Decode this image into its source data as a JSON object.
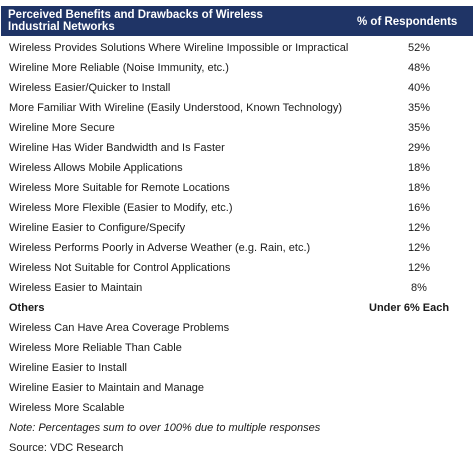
{
  "header": {
    "title": "Perceived Benefits and Drawbacks of Wireless Industrial Networks",
    "column": "% of Respondents"
  },
  "rows": [
    {
      "label": "Wireless Provides Solutions Where Wireline Impossible or Impractical",
      "value": "52%"
    },
    {
      "label": "Wireline More Reliable (Noise Immunity, etc.)",
      "value": "48%"
    },
    {
      "label": "Wireless Easier/Quicker to Install",
      "value": "40%"
    },
    {
      "label": "More Familiar With Wireline (Easily Understood, Known Technology)",
      "value": "35%"
    },
    {
      "label": "Wireline More Secure",
      "value": "35%"
    },
    {
      "label": "Wireline Has Wider Bandwidth and Is Faster",
      "value": "29%"
    },
    {
      "label": "Wireless Allows Mobile Applications",
      "value": "18%"
    },
    {
      "label": "Wireless More Suitable for Remote Locations",
      "value": "18%"
    },
    {
      "label": "Wireless More Flexible (Easier to Modify, etc.)",
      "value": "16%"
    },
    {
      "label": "Wireline Easier to Configure/Specify",
      "value": "12%"
    },
    {
      "label": "Wireless Performs Poorly in Adverse Weather (e.g. Rain, etc.)",
      "value": "12%"
    },
    {
      "label": "Wireless Not Suitable for Control Applications",
      "value": "12%"
    },
    {
      "label": "Wireless Easier to Maintain",
      "value": "8%"
    }
  ],
  "others": {
    "label": "Others",
    "value": "Under 6% Each",
    "items": [
      "Wireless Can Have Area Coverage Problems",
      "Wireless More Reliable Than Cable",
      "Wireline Easier to Install",
      "Wireline Easier to Maintain and Manage",
      "Wireless More Scalable"
    ]
  },
  "note": "Note: Percentages sum to over 100% due to multiple responses",
  "source": "Source: VDC Research",
  "colors": {
    "header_bg": "#1f3466",
    "header_text": "#ffffff"
  }
}
